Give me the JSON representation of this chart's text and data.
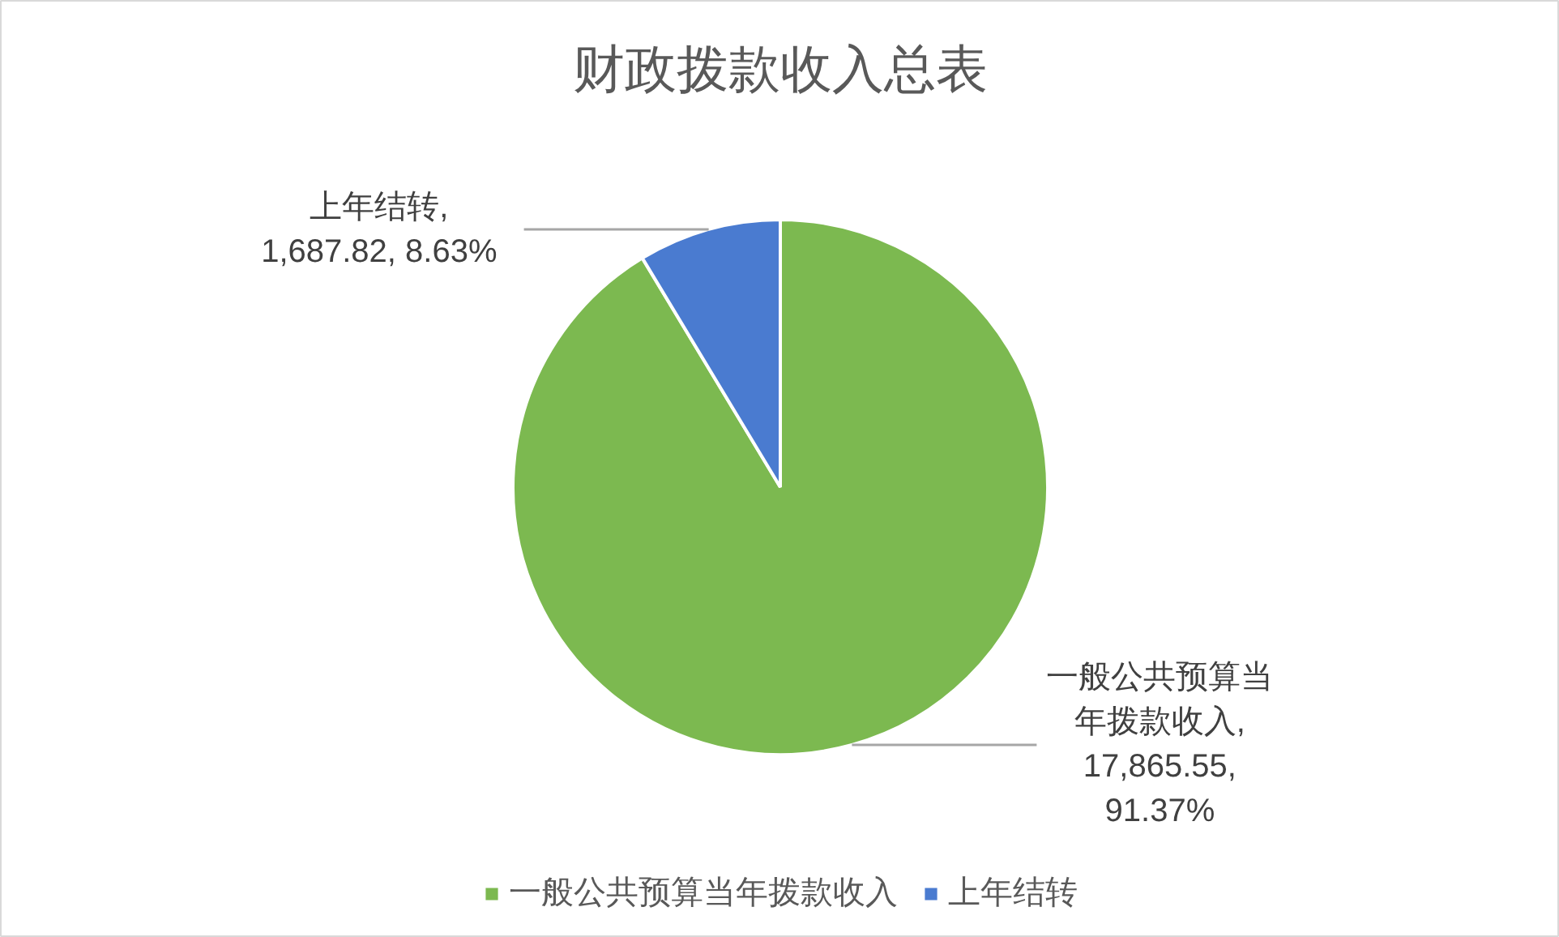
{
  "chart_data": {
    "type": "pie",
    "title": "财政拨款收入总表",
    "categories": [
      "一般公共预算当年拨款收入",
      "上年结转"
    ],
    "values": [
      17865.55,
      1687.82
    ],
    "colors": [
      "#7cb950",
      "#4a7bd0"
    ],
    "value_labels": [
      "一般公共预算当年拨款收入, 17,865.55, 91.37%",
      "上年结转, 1,687.82, 8.63%"
    ],
    "legend": "bottom"
  }
}
